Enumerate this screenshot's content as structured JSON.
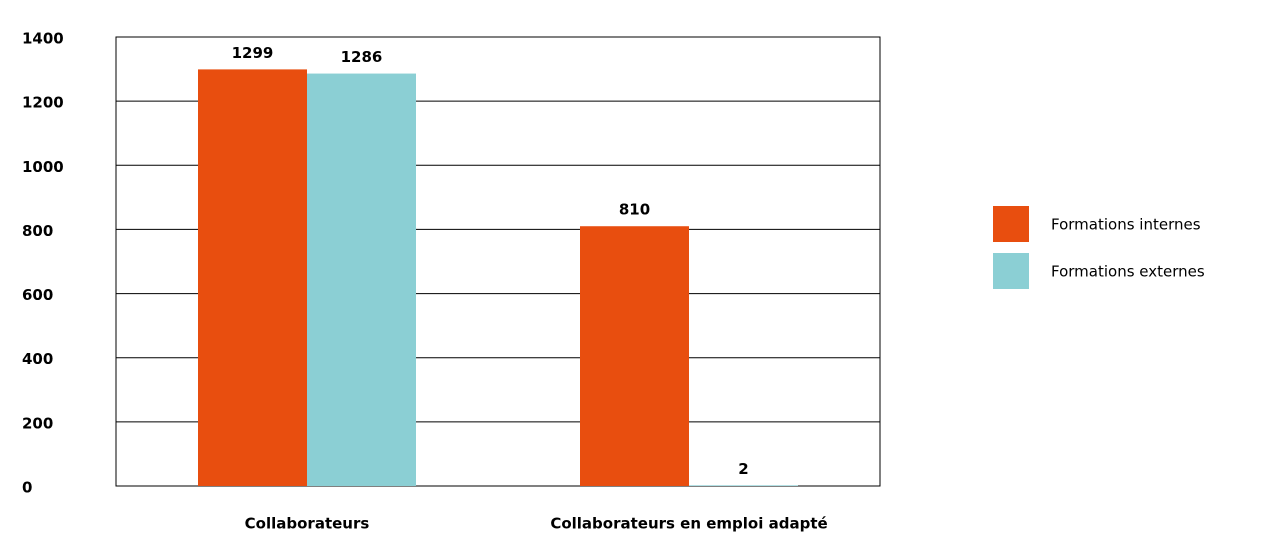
{
  "chart_data": {
    "type": "bar",
    "categories": [
      "Collaborateurs",
      "Collaborateurs en emploi adapté"
    ],
    "series": [
      {
        "name": "Formations internes",
        "color": "#e84e0f",
        "values": [
          1299,
          810
        ]
      },
      {
        "name": "Formations externes",
        "color": "#8bcfd4",
        "values": [
          1286,
          2
        ]
      }
    ],
    "ylim": [
      0,
      1400
    ],
    "yticks": [
      0,
      200,
      400,
      600,
      800,
      1000,
      1200,
      1400
    ],
    "grid": true,
    "legend": "right"
  }
}
